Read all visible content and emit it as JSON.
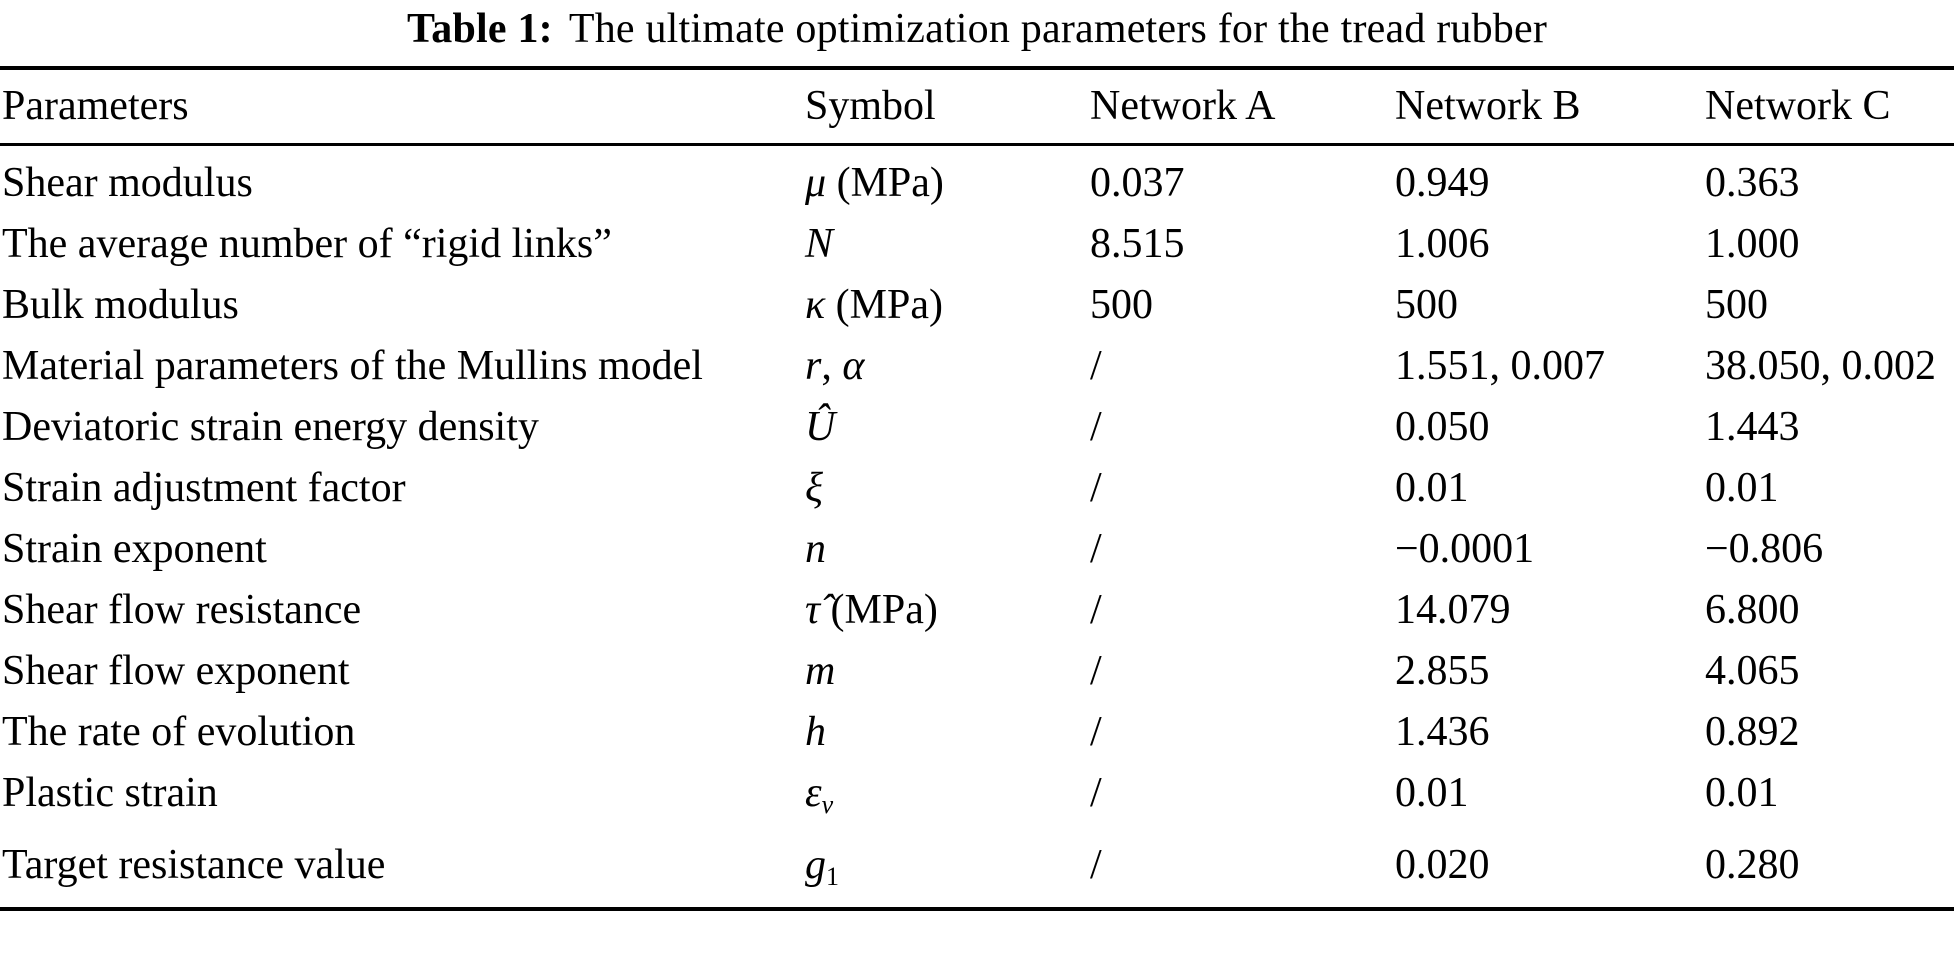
{
  "caption": {
    "label": "Table 1:",
    "text": "The ultimate optimization parameters for the tread rubber"
  },
  "colors": {
    "text": "#000000",
    "background": "#ffffff",
    "rule": "#000000"
  },
  "table": {
    "columns": [
      "Parameters",
      "Symbol",
      "Network A",
      "Network B",
      "Network C"
    ],
    "rows": [
      {
        "parameter": "Shear modulus",
        "symbol": [
          {
            "text": "μ",
            "italic": true
          },
          {
            "text": " (MPa)"
          }
        ],
        "network_a": "0.037",
        "network_b": "0.949",
        "network_c": "0.363"
      },
      {
        "parameter": "The average number of “rigid links”",
        "symbol": [
          {
            "text": "N",
            "italic": true
          }
        ],
        "network_a": "8.515",
        "network_b": "1.006",
        "network_c": "1.000"
      },
      {
        "parameter": "Bulk modulus",
        "symbol": [
          {
            "text": "κ",
            "italic": true
          },
          {
            "text": " (MPa)"
          }
        ],
        "network_a": "500",
        "network_b": "500",
        "network_c": "500"
      },
      {
        "parameter": "Material parameters of the Mullins model",
        "symbol": [
          {
            "text": "r",
            "italic": true
          },
          {
            "text": ", "
          },
          {
            "text": "α",
            "italic": true
          }
        ],
        "network_a": "/",
        "network_b": "1.551, 0.007",
        "network_c": "38.050, 0.002"
      },
      {
        "parameter": "Deviatoric strain energy density",
        "symbol": [
          {
            "text": "Û",
            "italic": true
          }
        ],
        "network_a": "/",
        "network_b": "0.050",
        "network_c": "1.443"
      },
      {
        "parameter": "Strain adjustment factor",
        "symbol": [
          {
            "text": "ξ",
            "italic": true
          }
        ],
        "network_a": "/",
        "network_b": "0.01",
        "network_c": "0.01"
      },
      {
        "parameter": "Strain exponent",
        "symbol": [
          {
            "text": "n",
            "italic": true
          }
        ],
        "network_a": "/",
        "network_b": "−0.0001",
        "network_c": "−0.806"
      },
      {
        "parameter": "Shear flow resistance",
        "symbol": [
          {
            "text": "τ̂",
            "italic": true
          },
          {
            "text": " (MPa)"
          }
        ],
        "network_a": "/",
        "network_b": "14.079",
        "network_c": "6.800"
      },
      {
        "parameter": "Shear flow exponent",
        "symbol": [
          {
            "text": "m",
            "italic": true
          }
        ],
        "network_a": "/",
        "network_b": "2.855",
        "network_c": "4.065"
      },
      {
        "parameter": "The rate of evolution",
        "symbol": [
          {
            "text": "h",
            "italic": true
          }
        ],
        "network_a": "/",
        "network_b": "1.436",
        "network_c": "0.892"
      },
      {
        "parameter": "Plastic strain",
        "symbol": [
          {
            "text": "ε",
            "italic": true
          },
          {
            "text": "v",
            "italic": true,
            "sub": true
          }
        ],
        "network_a": "/",
        "network_b": "0.01",
        "network_c": "0.01"
      },
      {
        "parameter": "Target resistance value",
        "symbol": [
          {
            "text": "g",
            "italic": true
          },
          {
            "text": "1",
            "sub": true
          }
        ],
        "network_a": "/",
        "network_b": "0.020",
        "network_c": "0.280"
      }
    ]
  }
}
